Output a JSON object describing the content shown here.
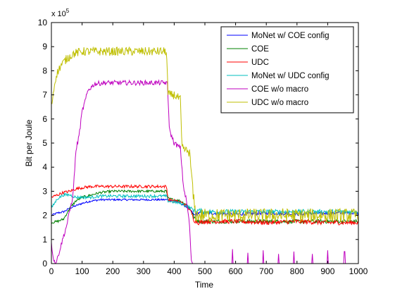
{
  "chart_data": {
    "type": "line",
    "xlabel": "Time",
    "ylabel": "Bit per Joule",
    "y_multiplier_label": "x 10",
    "y_multiplier_exponent": "5",
    "xlim": [
      0,
      1000
    ],
    "ylim": [
      0,
      10
    ],
    "x_ticks": [
      "0",
      "100",
      "200",
      "300",
      "400",
      "500",
      "600",
      "700",
      "800",
      "900",
      "1000"
    ],
    "y_ticks": [
      "0",
      "1",
      "2",
      "3",
      "4",
      "5",
      "6",
      "7",
      "8",
      "9",
      "10"
    ],
    "grid": false,
    "legend_position": "top-right",
    "series": [
      {
        "name": "MoNet w/ COE config",
        "color": "#0000ff",
        "points": [
          [
            0,
            2.0
          ],
          [
            20,
            2.1
          ],
          [
            40,
            2.15
          ],
          [
            60,
            2.3
          ],
          [
            80,
            2.4
          ],
          [
            100,
            2.5
          ],
          [
            130,
            2.6
          ],
          [
            160,
            2.65
          ],
          [
            200,
            2.65
          ],
          [
            250,
            2.65
          ],
          [
            300,
            2.65
          ],
          [
            350,
            2.65
          ],
          [
            375,
            2.65
          ],
          [
            400,
            2.6
          ],
          [
            420,
            2.5
          ],
          [
            440,
            2.35
          ],
          [
            455,
            2.2
          ],
          [
            465,
            2.0
          ],
          [
            480,
            2.1
          ],
          [
            500,
            2.1
          ],
          [
            600,
            2.05
          ],
          [
            700,
            2.1
          ],
          [
            800,
            2.05
          ],
          [
            900,
            2.1
          ],
          [
            1000,
            2.1
          ]
        ],
        "noise": 0.04
      },
      {
        "name": "COE",
        "color": "#008000",
        "points": [
          [
            0,
            1.7
          ],
          [
            20,
            1.75
          ],
          [
            40,
            1.85
          ],
          [
            60,
            2.3
          ],
          [
            80,
            2.6
          ],
          [
            100,
            2.75
          ],
          [
            130,
            2.85
          ],
          [
            160,
            2.95
          ],
          [
            200,
            3.0
          ],
          [
            250,
            3.0
          ],
          [
            300,
            3.0
          ],
          [
            350,
            3.0
          ],
          [
            375,
            3.0
          ],
          [
            380,
            2.7
          ],
          [
            420,
            2.6
          ],
          [
            440,
            2.45
          ],
          [
            455,
            2.2
          ],
          [
            465,
            1.9
          ],
          [
            480,
            1.75
          ],
          [
            500,
            1.75
          ],
          [
            600,
            1.75
          ],
          [
            700,
            1.75
          ],
          [
            800,
            1.75
          ],
          [
            900,
            1.75
          ],
          [
            1000,
            1.75
          ]
        ],
        "noise": 0.05
      },
      {
        "name": "UDC",
        "color": "#ff0000",
        "points": [
          [
            0,
            2.75
          ],
          [
            20,
            2.85
          ],
          [
            40,
            2.95
          ],
          [
            60,
            3.0
          ],
          [
            80,
            3.1
          ],
          [
            100,
            3.15
          ],
          [
            130,
            3.2
          ],
          [
            160,
            3.2
          ],
          [
            200,
            3.2
          ],
          [
            250,
            3.2
          ],
          [
            300,
            3.2
          ],
          [
            350,
            3.2
          ],
          [
            375,
            3.2
          ],
          [
            380,
            2.65
          ],
          [
            420,
            2.55
          ],
          [
            440,
            2.4
          ],
          [
            455,
            2.15
          ],
          [
            465,
            1.8
          ],
          [
            480,
            1.7
          ],
          [
            500,
            1.75
          ],
          [
            600,
            1.75
          ],
          [
            700,
            1.7
          ],
          [
            800,
            1.75
          ],
          [
            900,
            1.7
          ],
          [
            1000,
            1.7
          ]
        ],
        "noise": 0.06
      },
      {
        "name": "MoNet w/ UDC config",
        "color": "#00bfbf",
        "points": [
          [
            0,
            2.3
          ],
          [
            20,
            2.7
          ],
          [
            40,
            2.85
          ],
          [
            60,
            2.85
          ],
          [
            80,
            2.75
          ],
          [
            100,
            2.75
          ],
          [
            130,
            2.75
          ],
          [
            160,
            2.8
          ],
          [
            200,
            2.8
          ],
          [
            250,
            2.8
          ],
          [
            300,
            2.8
          ],
          [
            350,
            2.8
          ],
          [
            375,
            2.8
          ],
          [
            380,
            2.6
          ],
          [
            420,
            2.5
          ],
          [
            440,
            2.4
          ],
          [
            455,
            2.3
          ],
          [
            465,
            2.2
          ],
          [
            480,
            2.2
          ],
          [
            500,
            2.15
          ],
          [
            600,
            2.15
          ],
          [
            700,
            2.15
          ],
          [
            800,
            2.15
          ],
          [
            900,
            2.15
          ],
          [
            1000,
            2.15
          ]
        ],
        "noise": 0.06
      },
      {
        "name": "COE w/o macro",
        "color": "#bf00bf",
        "points": [
          [
            0,
            0.8
          ],
          [
            8,
            0.15
          ],
          [
            15,
            0.0
          ],
          [
            30,
            0.7
          ],
          [
            50,
            1.6
          ],
          [
            70,
            2.8
          ],
          [
            80,
            4.7
          ],
          [
            90,
            5.3
          ],
          [
            100,
            6.3
          ],
          [
            120,
            7.2
          ],
          [
            140,
            7.45
          ],
          [
            170,
            7.5
          ],
          [
            200,
            7.5
          ],
          [
            250,
            7.5
          ],
          [
            300,
            7.5
          ],
          [
            350,
            7.5
          ],
          [
            375,
            7.5
          ],
          [
            378,
            7.4
          ],
          [
            380,
            6.8
          ],
          [
            385,
            5.5
          ],
          [
            400,
            5.0
          ],
          [
            420,
            4.8
          ],
          [
            430,
            3.2
          ],
          [
            440,
            2.6
          ],
          [
            450,
            1.6
          ],
          [
            455,
            0.2
          ],
          [
            460,
            0.0
          ],
          [
            1000,
            0.0
          ]
        ],
        "noise": 0.1,
        "spikes": [
          [
            590,
            0.6
          ],
          [
            640,
            0.45
          ],
          [
            690,
            0.55
          ],
          [
            740,
            0.4
          ],
          [
            790,
            0.5
          ],
          [
            850,
            0.4
          ],
          [
            900,
            0.55
          ],
          [
            955,
            0.5
          ]
        ]
      },
      {
        "name": "UDC w/o macro",
        "color": "#bfbf00",
        "points": [
          [
            0,
            6.5
          ],
          [
            5,
            7.0
          ],
          [
            15,
            7.8
          ],
          [
            30,
            8.2
          ],
          [
            50,
            8.5
          ],
          [
            70,
            8.7
          ],
          [
            100,
            8.8
          ],
          [
            150,
            8.8
          ],
          [
            200,
            8.8
          ],
          [
            250,
            8.8
          ],
          [
            300,
            8.8
          ],
          [
            350,
            8.8
          ],
          [
            375,
            8.8
          ],
          [
            380,
            7.0
          ],
          [
            400,
            7.0
          ],
          [
            420,
            6.8
          ],
          [
            425,
            4.8
          ],
          [
            450,
            4.6
          ],
          [
            458,
            3.5
          ],
          [
            462,
            2.8
          ],
          [
            470,
            2.0
          ],
          [
            500,
            2.0
          ],
          [
            600,
            2.0
          ],
          [
            700,
            2.0
          ],
          [
            800,
            2.0
          ],
          [
            900,
            2.0
          ],
          [
            1000,
            2.0
          ]
        ],
        "noise": 0.18
      }
    ]
  }
}
